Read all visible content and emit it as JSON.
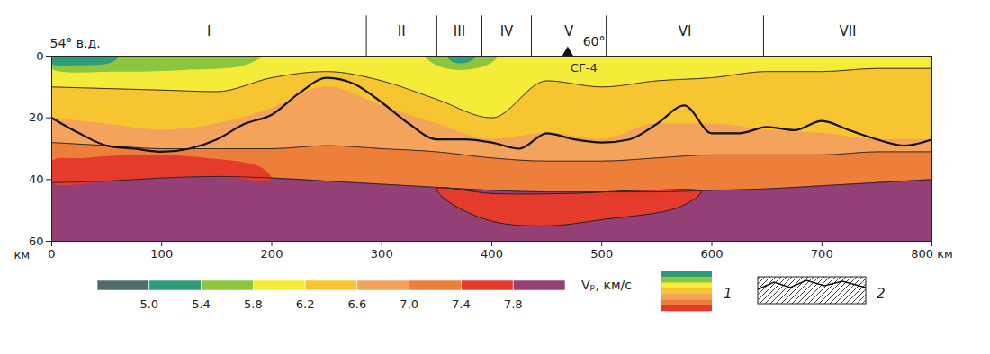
{
  "chart_data": {
    "type": "section",
    "xlim": [
      0,
      800
    ],
    "ylim": [
      0,
      60
    ],
    "xticks": [
      0,
      100,
      200,
      300,
      400,
      500,
      600,
      700,
      {
        "value": 800,
        "label": "800 км"
      }
    ],
    "yticks": [
      0,
      20,
      40,
      60
    ],
    "y_label": "км",
    "top_labels": {
      "longitudes": [
        {
          "x": 0,
          "label": "54° в.д."
        },
        {
          "x": 488,
          "label": "60°"
        }
      ],
      "well": {
        "x": 469,
        "label": "СГ-4"
      },
      "zones": {
        "dividers": [
          286,
          350,
          391,
          436,
          504,
          647
        ],
        "labels": [
          "I",
          "II",
          "III",
          "IV",
          "V",
          "VI",
          "VII"
        ]
      }
    },
    "layers": [
      {
        "color": "#f5ec3a",
        "line_style": "none",
        "x": [
          0,
          50,
          100,
          150,
          200,
          250,
          300,
          350,
          400,
          450,
          500,
          550,
          600,
          650,
          700,
          750,
          800
        ],
        "top": [
          0,
          0,
          0,
          0,
          0,
          0,
          0,
          0,
          0,
          0,
          0,
          0,
          0,
          0,
          0,
          0,
          0
        ]
      },
      {
        "color": "#f7c531",
        "line_style": "solid",
        "x": [
          0,
          50,
          100,
          150,
          200,
          250,
          300,
          350,
          400,
          450,
          500,
          550,
          600,
          650,
          700,
          750,
          800
        ],
        "top": [
          10,
          10.5,
          11,
          11.5,
          7,
          5,
          8,
          14,
          20,
          8,
          10,
          8,
          7,
          5,
          5,
          4,
          4
        ]
      },
      {
        "color": "#f3a35c",
        "line_style": "none",
        "x": [
          0,
          50,
          100,
          150,
          200,
          250,
          300,
          350,
          400,
          450,
          500,
          550,
          600,
          650,
          700,
          750,
          800
        ],
        "top": [
          20,
          22,
          24,
          22,
          17,
          10,
          16,
          22,
          27,
          25,
          27,
          22,
          22,
          24,
          25,
          27,
          27
        ]
      },
      {
        "color": "#ee7f3a",
        "line_style": "solid",
        "x": [
          0,
          50,
          100,
          150,
          200,
          250,
          300,
          350,
          400,
          450,
          500,
          550,
          600,
          650,
          700,
          750,
          800
        ],
        "top": [
          28,
          29,
          30,
          30,
          30,
          29,
          30,
          31,
          33,
          34,
          34,
          33,
          32,
          32,
          32,
          31,
          31
        ]
      },
      {
        "color": "#943f76",
        "line_style": "solid",
        "x": [
          0,
          50,
          100,
          150,
          200,
          250,
          300,
          350,
          400,
          450,
          500,
          550,
          600,
          650,
          700,
          750,
          800
        ],
        "top": [
          41,
          40.5,
          39.5,
          39,
          39.5,
          40.5,
          41.5,
          42.5,
          43.5,
          44,
          44,
          44,
          43.5,
          43,
          42,
          41,
          40
        ]
      }
    ],
    "bodies": [
      {
        "color": "#e43b2c",
        "line_style": "none",
        "x": [
          0,
          30,
          80,
          140,
          190,
          200,
          150,
          100,
          50,
          0
        ],
        "y": [
          34,
          33,
          32,
          33,
          36,
          40,
          39,
          39.5,
          40.5,
          41
        ]
      },
      {
        "color": "#e43b2c",
        "line_style": "solid",
        "x": [
          350,
          400,
          470,
          540,
          590,
          570,
          500,
          450,
          400,
          360
        ],
        "y": [
          43,
          44.5,
          44.5,
          43.5,
          44,
          49,
          53,
          55,
          53.5,
          47
        ]
      },
      {
        "color": "#8cc63f",
        "line_style": "none",
        "x": [
          0,
          190,
          175,
          120,
          60,
          0
        ],
        "y": [
          0,
          0,
          3,
          4.5,
          5,
          4
        ]
      },
      {
        "color": "#2e9c7a",
        "line_style": "none",
        "x": [
          0,
          60,
          55,
          20,
          0
        ],
        "y": [
          0,
          0,
          2,
          3,
          2.5
        ]
      },
      {
        "color": "#8cc63f",
        "line_style": "none",
        "x": [
          340,
          405,
          395,
          370,
          350
        ],
        "y": [
          0,
          0,
          3,
          4.5,
          3
        ]
      },
      {
        "color": "#2e9c7a",
        "line_style": "none",
        "x": [
          360,
          385,
          378,
          365
        ],
        "y": [
          0,
          0,
          2,
          2
        ]
      }
    ],
    "hatched": {
      "x": [
        0,
        25,
        50,
        75,
        100,
        125,
        150,
        175,
        200,
        225,
        250,
        275,
        300,
        325,
        350,
        375,
        400,
        425,
        450,
        475,
        500,
        525,
        550,
        575,
        600,
        625,
        650,
        675,
        700,
        725,
        750,
        775,
        800
      ],
      "top": [
        20,
        25,
        29,
        30,
        31,
        30,
        27,
        22,
        19,
        12,
        7,
        9,
        15,
        22,
        27,
        27,
        28,
        30,
        25,
        27,
        28,
        27,
        22,
        16,
        25,
        25,
        23,
        24,
        21,
        24,
        27,
        29,
        27
      ],
      "bottom": [
        41,
        41,
        40.5,
        40,
        39.5,
        39,
        39,
        39,
        39.5,
        40,
        40.5,
        41,
        41.5,
        42,
        42.5,
        43,
        43.5,
        44,
        44,
        44,
        44,
        44,
        44,
        44,
        43.5,
        43,
        43,
        42.5,
        42,
        41.5,
        41,
        40.5,
        40
      ]
    },
    "colorbar": {
      "title": "Vₚ, км/с",
      "range": [
        4.6,
        8.2
      ],
      "ticks": [
        {
          "value": 5,
          "label": "5.0"
        },
        5.4,
        5.8,
        6.2,
        6.6,
        {
          "value": 7,
          "label": "7.0"
        },
        7.4,
        7.8
      ],
      "colors": [
        "#4d6a6e",
        "#2e9c7a",
        "#8cc63f",
        "#f5ec3a",
        "#f7c531",
        "#f3a35c",
        "#ee7f3a",
        "#e43b2c",
        "#943f76"
      ]
    },
    "key_items": [
      {
        "label": "1"
      },
      {
        "label": "2"
      }
    ]
  }
}
